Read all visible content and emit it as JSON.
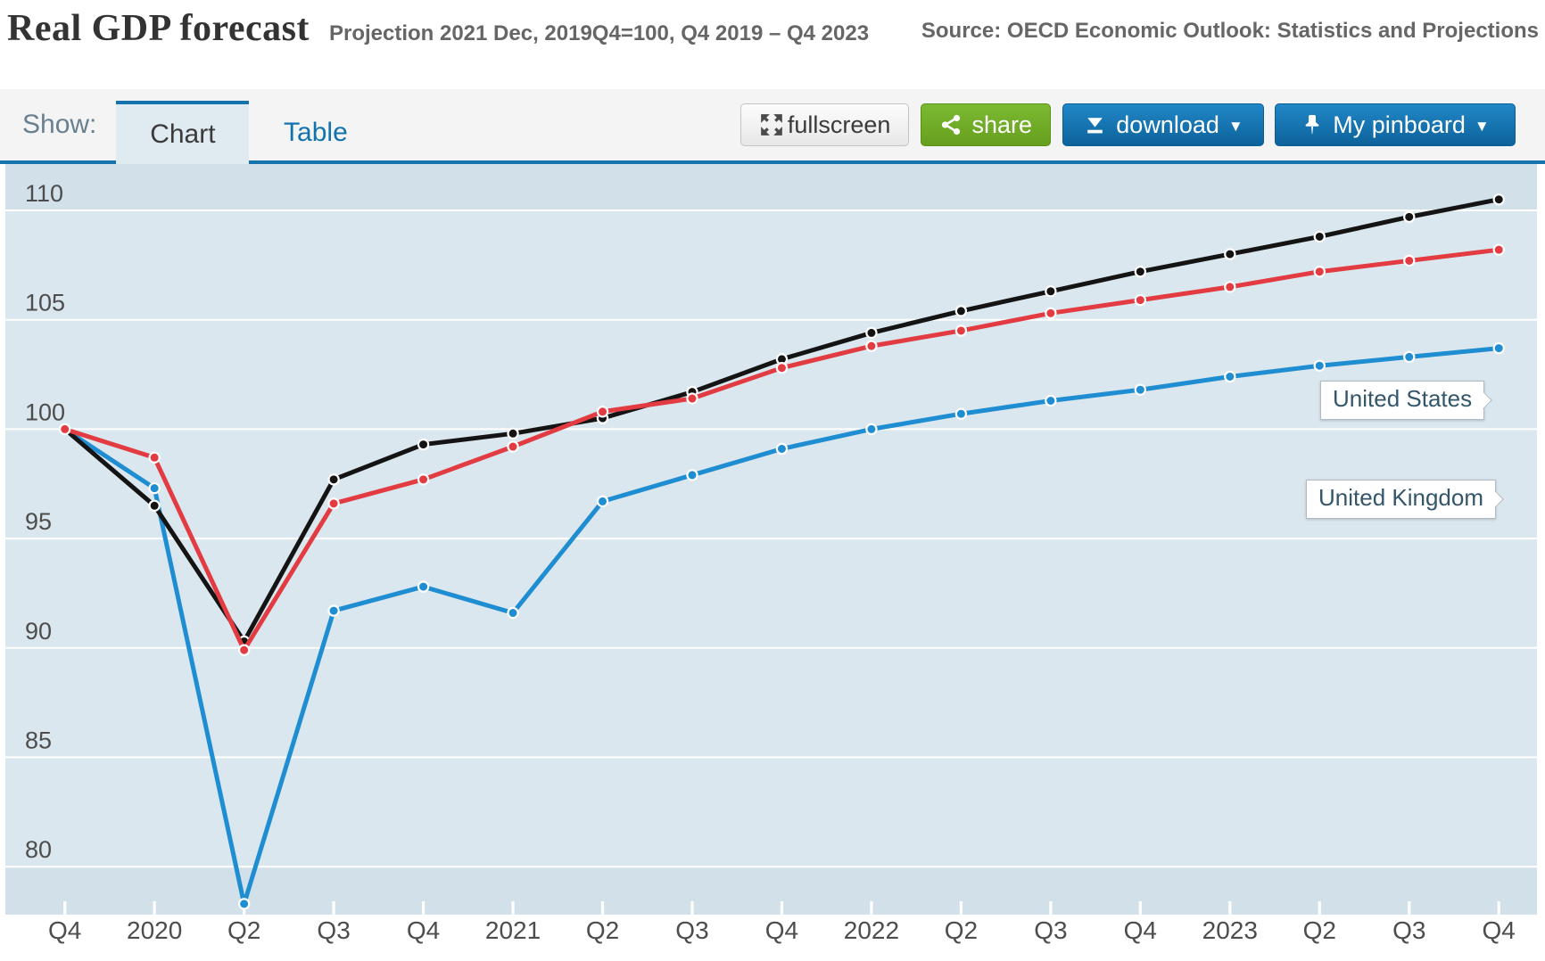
{
  "header": {
    "title": "Real GDP forecast",
    "subtitle": "Projection 2021 Dec, 2019Q4=100, Q4 2019 – Q4 2023",
    "source": "Source: OECD Economic Outlook: Statistics and Projections"
  },
  "toolbar": {
    "show_label": "Show:",
    "tab_chart": "Chart",
    "tab_table": "Table",
    "fullscreen_label": "fullscreen",
    "share_label": "share",
    "download_label": "download",
    "pinboard_label": "My pinboard",
    "caret": "▼"
  },
  "chart_data": {
    "type": "line",
    "title": "Real GDP forecast",
    "subtitle": "Projection 2021 Dec, 2019Q4=100, Q4 2019 – Q4 2023",
    "categories": [
      "Q4",
      "2020",
      "Q2",
      "Q3",
      "Q4",
      "2021",
      "Q2",
      "Q3",
      "Q4",
      "2022",
      "Q2",
      "Q3",
      "Q4",
      "2023",
      "Q2",
      "Q3",
      "Q4"
    ],
    "yticks": [
      80,
      85,
      90,
      95,
      100,
      105,
      110
    ],
    "ylim": [
      77.8,
      112.2
    ],
    "grid": "horizontal-only",
    "legend_position": "inline-labels-right",
    "plot_bg": "#dbe7ee",
    "plot_band_dark": "#d2e0e9",
    "series": [
      {
        "name": "United Kingdom",
        "color": "#1f8dd1",
        "label_visible": true,
        "values": [
          100,
          97.3,
          78.3,
          91.7,
          92.8,
          91.6,
          96.7,
          97.9,
          99.1,
          100.0,
          100.7,
          101.3,
          101.8,
          102.4,
          102.9,
          103.3,
          103.7
        ]
      },
      {
        "name": "",
        "color": "#141414",
        "label_visible": false,
        "values": [
          100,
          96.5,
          90.3,
          97.7,
          99.3,
          99.8,
          100.5,
          101.7,
          103.2,
          104.4,
          105.4,
          106.3,
          107.2,
          108.0,
          108.8,
          109.7,
          110.5
        ]
      },
      {
        "name": "United States",
        "color": "#e23b41",
        "label_visible": true,
        "values": [
          100,
          98.7,
          89.9,
          96.6,
          97.7,
          99.2,
          100.8,
          101.4,
          102.8,
          103.8,
          104.5,
          105.3,
          105.9,
          106.5,
          107.2,
          107.7,
          108.2
        ]
      }
    ]
  }
}
